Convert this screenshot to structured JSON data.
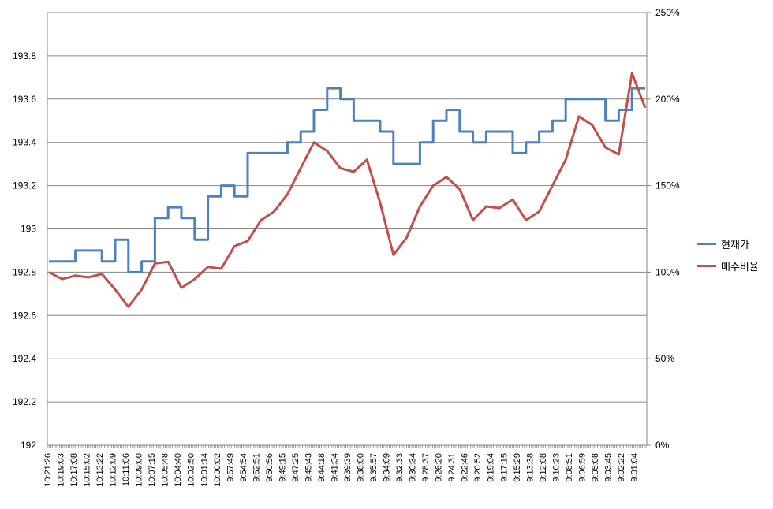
{
  "chart_data": {
    "type": "line",
    "title": "",
    "legend_placement": "right",
    "grid": true,
    "x_categories": [
      "10:21:26",
      "10:19:03",
      "10:17:08",
      "10:15:02",
      "10:13:22",
      "10:12:09",
      "10:11:06",
      "10:09:00",
      "10:07:15",
      "10:05:48",
      "10:04:40",
      "10:02:50",
      "10:01:14",
      "10:00:02",
      "9:57:49",
      "9:54:54",
      "9:52:51",
      "9:50:56",
      "9:49:15",
      "9:47:25",
      "9:45:43",
      "9:44:18",
      "9:41:34",
      "9:39:39",
      "9:38:00",
      "9:35:57",
      "9:34:09",
      "9:32:33",
      "9:30:34",
      "9:28:37",
      "9:26:20",
      "9:24:31",
      "9:22:46",
      "9:20:52",
      "9:19:04",
      "9:17:15",
      "9:15:29",
      "9:13:38",
      "9:12:08",
      "9:10:23",
      "9:08:51",
      "9:06:59",
      "9:05:08",
      "9:03:45",
      "9:02:22",
      "9:01:04"
    ],
    "y_left": {
      "min": 192,
      "max": 194,
      "step": 0.2,
      "ticks": [
        "192",
        "192.2",
        "192.4",
        "192.6",
        "192.8",
        "193",
        "193.2",
        "193.4",
        "193.6",
        "193.8"
      ]
    },
    "y_right": {
      "min": 0,
      "max": 250,
      "step": 50,
      "ticks": [
        "0%",
        "50%",
        "100%",
        "150%",
        "200%",
        "250%"
      ]
    },
    "series": [
      {
        "name": "현재가",
        "axis": "left",
        "color": "#4f81bd",
        "values": [
          192.85,
          192.85,
          192.9,
          192.9,
          192.85,
          192.95,
          192.8,
          192.85,
          193.05,
          193.1,
          193.05,
          192.95,
          193.15,
          193.2,
          193.15,
          193.35,
          193.35,
          193.35,
          193.4,
          193.45,
          193.55,
          193.65,
          193.6,
          193.5,
          193.5,
          193.45,
          193.3,
          193.3,
          193.4,
          193.5,
          193.55,
          193.45,
          193.4,
          193.45,
          193.45,
          193.35,
          193.4,
          193.45,
          193.5,
          193.6,
          193.6,
          193.6,
          193.5,
          193.55,
          193.65,
          193.65
        ]
      },
      {
        "name": "매수비율",
        "axis": "right",
        "color": "#c0504d",
        "values": [
          100,
          96,
          98,
          97,
          99,
          90,
          80,
          90,
          105,
          106,
          91,
          96,
          103,
          102,
          115,
          118,
          130,
          135,
          145,
          160,
          175,
          170,
          160,
          158,
          165,
          140,
          110,
          120,
          138,
          150,
          155,
          148,
          130,
          138,
          137,
          142,
          130,
          135,
          150,
          165,
          190,
          185,
          172,
          168,
          215,
          195
        ]
      }
    ]
  }
}
